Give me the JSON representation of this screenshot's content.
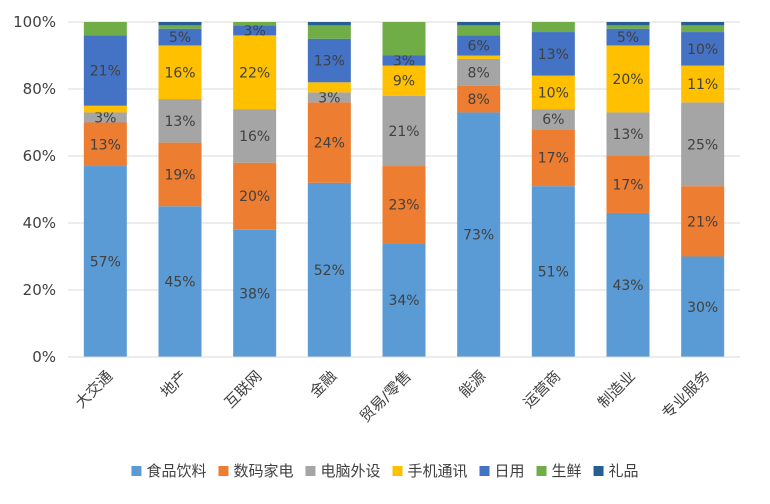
{
  "chart_data": {
    "type": "bar",
    "stacked": true,
    "percent": true,
    "title": "",
    "xlabel": "",
    "ylabel": "",
    "ylim": [
      0,
      100
    ],
    "yticks": [
      "0%",
      "20%",
      "40%",
      "60%",
      "80%",
      "100%"
    ],
    "grid": true,
    "legend_position": "bottom",
    "categories": [
      "大交通",
      "地产",
      "互联网",
      "金融",
      "贸易/零售",
      "能源",
      "运营商",
      "制造业",
      "专业服务"
    ],
    "series": [
      {
        "name": "食品饮料",
        "color": "#5B9BD5",
        "values": [
          57,
          45,
          38,
          52,
          34,
          73,
          51,
          43,
          30
        ],
        "labels": [
          "57%",
          "45%",
          "38%",
          "52%",
          "34%",
          "73%",
          "51%",
          "43%",
          "30%"
        ]
      },
      {
        "name": "数码家电",
        "color": "#ED7D31",
        "values": [
          13,
          19,
          20,
          24,
          23,
          8,
          17,
          17,
          21
        ],
        "labels": [
          "13%",
          "19%",
          "20%",
          "24%",
          "23%",
          "8%",
          "17%",
          "17%",
          "21%"
        ]
      },
      {
        "name": "电脑外设",
        "color": "#A5A5A5",
        "values": [
          3,
          13,
          16,
          3,
          21,
          8,
          6,
          13,
          25
        ],
        "labels": [
          "3%",
          "13%",
          "16%",
          "3%",
          "21%",
          "8%",
          "6%",
          "13%",
          "25%"
        ]
      },
      {
        "name": "手机通讯",
        "color": "#FFC000",
        "values": [
          2,
          16,
          22,
          3,
          9,
          1,
          10,
          20,
          11
        ],
        "labels": [
          "",
          "16%",
          "22%",
          "",
          "9%",
          "",
          "10%",
          "20%",
          "11%"
        ]
      },
      {
        "name": "日用",
        "color": "#4472C4",
        "values": [
          21,
          5,
          3,
          13,
          3,
          6,
          13,
          5,
          10
        ],
        "labels": [
          "21%",
          "5%",
          "3%",
          "13%",
          "3%",
          "6%",
          "13%",
          "5%",
          "10%"
        ]
      },
      {
        "name": "生鲜",
        "color": "#70AD47",
        "values": [
          4,
          1,
          1,
          4,
          10,
          3,
          3,
          1,
          2
        ],
        "labels": [
          "",
          "",
          "",
          "",
          "",
          "",
          "",
          "",
          ""
        ]
      },
      {
        "name": "礼品",
        "color": "#255E91",
        "values": [
          0,
          1,
          0,
          1,
          0,
          1,
          0,
          1,
          1
        ],
        "labels": [
          "",
          "",
          "",
          "",
          "",
          "",
          "",
          "",
          ""
        ]
      }
    ]
  }
}
